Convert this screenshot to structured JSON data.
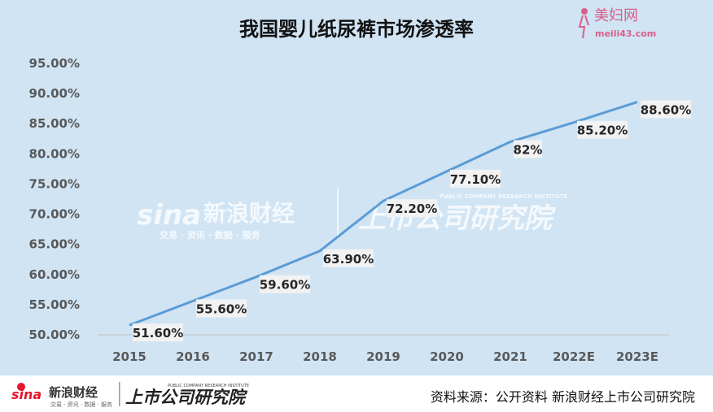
{
  "brand": {
    "name_cn": "美妇网",
    "domain": "meili43.com",
    "color": "#d9608a"
  },
  "watermark": {
    "sina_en": "sina",
    "sina_cn": "新浪财经",
    "sina_sub": "交易 · 资讯 · 数据 · 服务",
    "institute_cn": "上市公司研究院",
    "institute_en": "PUBLIC COMPANY RESEARCH INSTITUTE"
  },
  "footer": {
    "source": "资料来源：公开资料 新浪财经上市公司研究院"
  },
  "colors": {
    "panel": "#d0e4f4",
    "line": "#5b9bd5",
    "label_bg": "#f2f2f2"
  },
  "chart_data": {
    "type": "line",
    "title": "我国婴儿纸尿裤市场渗透率",
    "categories": [
      "2015",
      "2016",
      "2017",
      "2018",
      "2019",
      "2020",
      "2021",
      "2022E",
      "2023E"
    ],
    "series": [
      {
        "values": [
          51.6,
          55.6,
          59.6,
          63.9,
          72.2,
          77.1,
          82,
          85.2,
          88.6
        ]
      }
    ],
    "data_labels": [
      "51.60%",
      "55.60%",
      "59.60%",
      "63.90%",
      "72.20%",
      "77.10%",
      "82%",
      "85.20%",
      "88.60%"
    ],
    "y_ticks": [
      "50.00%",
      "55.00%",
      "60.00%",
      "65.00%",
      "70.00%",
      "75.00%",
      "80.00%",
      "85.00%",
      "90.00%",
      "95.00%"
    ],
    "ylim": [
      50,
      95
    ],
    "grid": false,
    "legend": "none"
  }
}
